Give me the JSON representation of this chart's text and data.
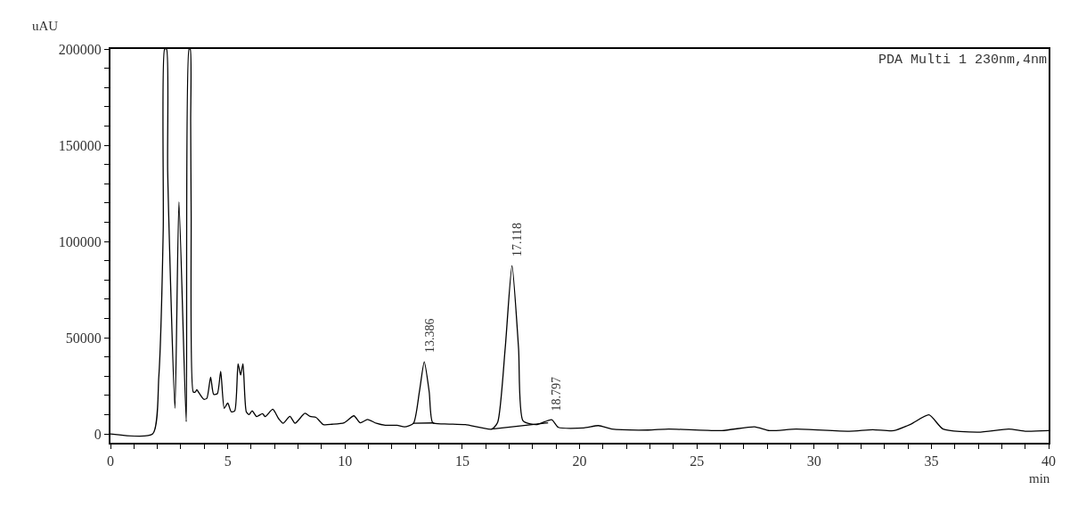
{
  "chart_data": {
    "type": "line",
    "xlabel": "min",
    "ylabel": "uAU",
    "annotations": [
      "PDA Multi 1 230nm,4nm",
      {
        "text": "13.386",
        "x": 13.386,
        "y": 37500
      },
      {
        "text": "17.118",
        "x": 17.118,
        "y": 87400
      },
      {
        "text": "18.797",
        "x": 18.797,
        "y": 7400
      }
    ],
    "series": [
      {
        "color": "#000000",
        "x": [
          0,
          1.8,
          2.06,
          2.25,
          2.31,
          2.39,
          2.44,
          2.75,
          2.92,
          3.23,
          3.35,
          3.4,
          3.42,
          3.44,
          3.53,
          3.62,
          3.68,
          3.79,
          3.98,
          4.11,
          4.27,
          4.4,
          4.56,
          4.7,
          4.85,
          5.0,
          5.15,
          5.3,
          5.44,
          5.55,
          5.65,
          5.79,
          5.91,
          6.04,
          6.23,
          6.48,
          6.6,
          6.92,
          7.17,
          7.36,
          7.65,
          7.87,
          8.29,
          8.51,
          8.76,
          9.08,
          9.45,
          9.96,
          10.38,
          10.65,
          10.96,
          11.34,
          11.72,
          12.22,
          12.54,
          12.92,
          13.17,
          13.38,
          13.59,
          13.74,
          14.24,
          15.13,
          16.26,
          16.51,
          16.83,
          17.12,
          17.4,
          17.59,
          18.16,
          18.81,
          19.1,
          20.18,
          20.81,
          21.38,
          22.92,
          23.8,
          26.07,
          27.46,
          28.1,
          29.23,
          31.5,
          32.5,
          33.4,
          34.13,
          34.9,
          35.5,
          37.0,
          38.3,
          39.0,
          40.0
        ],
        "values": [
          0,
          0,
          29500,
          106600,
          200000,
          200000,
          136000,
          13300,
          120500,
          6300,
          200000,
          200000,
          162200,
          114400,
          21800,
          21800,
          23000,
          21000,
          18000,
          18500,
          29500,
          20500,
          21000,
          32500,
          13300,
          16000,
          11500,
          12000,
          36400,
          30600,
          36400,
          11500,
          10000,
          12000,
          9000,
          10500,
          9000,
          12800,
          7900,
          5500,
          9100,
          5500,
          10700,
          9100,
          8600,
          4800,
          5000,
          5800,
          9400,
          5800,
          7500,
          5500,
          4500,
          4500,
          3700,
          5500,
          21800,
          37500,
          21800,
          5800,
          5200,
          4800,
          2500,
          6100,
          44500,
          87400,
          44500,
          6800,
          4800,
          7400,
          3400,
          3100,
          4300,
          2500,
          2000,
          2500,
          1700,
          3700,
          1700,
          2500,
          1400,
          2200,
          1700,
          5100,
          9900,
          2500,
          900,
          2500,
          1400,
          1700
        ]
      },
      {
        "color": "#000000",
        "x": [
          12.9,
          13.8,
          null,
          16.26,
          18.66
        ],
        "values": [
          5500,
          5700,
          null,
          2500,
          5800
        ]
      }
    ],
    "xlim": [
      0,
      40
    ],
    "ylim": [
      -4600,
      200000
    ],
    "xticks": [
      0,
      {
        "value": 1,
        "label": null
      },
      {
        "value": 2,
        "label": null
      },
      {
        "value": 3,
        "label": null
      },
      {
        "value": 4,
        "label": null
      },
      5,
      {
        "value": 6,
        "label": null
      },
      {
        "value": 7,
        "label": null
      },
      {
        "value": 8,
        "label": null
      },
      {
        "value": 9,
        "label": null
      },
      10,
      {
        "value": 11,
        "label": null
      },
      {
        "value": 12,
        "label": null
      },
      {
        "value": 13,
        "label": null
      },
      {
        "value": 14,
        "label": null
      },
      15,
      {
        "value": 16,
        "label": null
      },
      {
        "value": 17,
        "label": null
      },
      {
        "value": 18,
        "label": null
      },
      {
        "value": 19,
        "label": null
      },
      20,
      {
        "value": 21,
        "label": null
      },
      {
        "value": 22,
        "label": null
      },
      {
        "value": 23,
        "label": null
      },
      {
        "value": 24,
        "label": null
      },
      25,
      {
        "value": 26,
        "label": null
      },
      {
        "value": 27,
        "label": null
      },
      {
        "value": 28,
        "label": null
      },
      {
        "value": 29,
        "label": null
      },
      30,
      {
        "value": 31,
        "label": null
      },
      {
        "value": 32,
        "label": null
      },
      {
        "value": 33,
        "label": null
      },
      {
        "value": 34,
        "label": null
      },
      35,
      {
        "value": 36,
        "label": null
      },
      {
        "value": 37,
        "label": null
      },
      {
        "value": 38,
        "label": null
      },
      {
        "value": 39,
        "label": null
      },
      40
    ],
    "yticks": [
      0,
      {
        "value": 10000,
        "label": null
      },
      {
        "value": 20000,
        "label": null
      },
      {
        "value": 30000,
        "label": null
      },
      {
        "value": 40000,
        "label": null
      },
      50000,
      {
        "value": 60000,
        "label": null
      },
      {
        "value": 70000,
        "label": null
      },
      {
        "value": 80000,
        "label": null
      },
      {
        "value": 90000,
        "label": null
      },
      100000,
      {
        "value": 110000,
        "label": null
      },
      {
        "value": 120000,
        "label": null
      },
      {
        "value": 130000,
        "label": null
      },
      {
        "value": 140000,
        "label": null
      },
      150000,
      {
        "value": 160000,
        "label": null
      },
      {
        "value": 170000,
        "label": null
      },
      {
        "value": 180000,
        "label": null
      },
      {
        "value": 190000,
        "label": null
      },
      200000
    ],
    "marker": "none",
    "line_style": "solid"
  }
}
